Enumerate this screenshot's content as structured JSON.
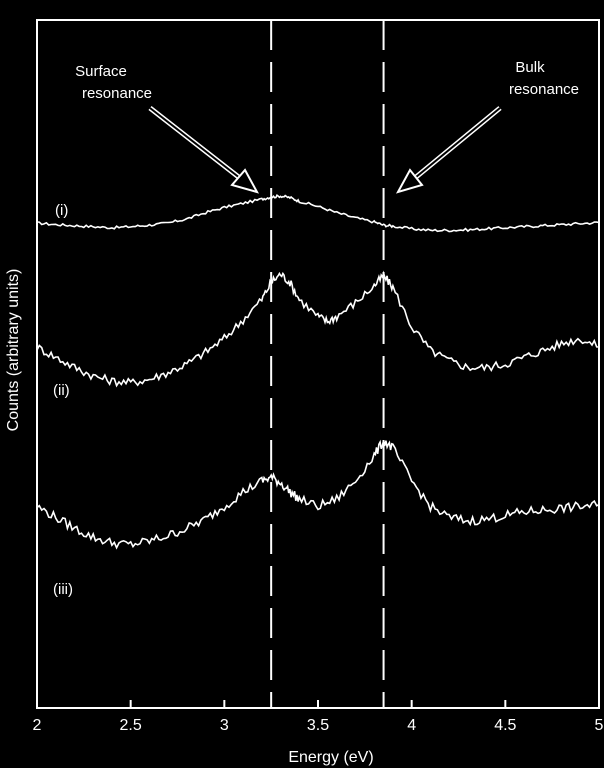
{
  "chart_data": {
    "type": "line",
    "xlabel": "Energy (eV)",
    "ylabel": "Counts (arbitrary units)",
    "xlim": [
      2,
      5
    ],
    "x_ticks": [
      "2",
      "2.5",
      "3",
      "3.5",
      "4",
      "4.5",
      "5"
    ],
    "reference_lines_x": [
      3.25,
      3.85
    ],
    "annotations": [
      {
        "lines": [
          "Surface",
          "resonance"
        ],
        "points_to_x": 3.25
      },
      {
        "lines": [
          "Bulk",
          "resonance"
        ],
        "points_to_x": 3.85
      }
    ],
    "series_labels": [
      "(i)",
      "(ii)",
      "(iii)"
    ],
    "series": [
      {
        "label": "(i)",
        "x": [
          2.0,
          2.1,
          2.2,
          2.3,
          2.4,
          2.5,
          2.6,
          2.7,
          2.8,
          2.9,
          3.0,
          3.1,
          3.2,
          3.25,
          3.3,
          3.35,
          3.4,
          3.5,
          3.6,
          3.7,
          3.8,
          3.85,
          3.9,
          4.0,
          4.1,
          4.2,
          4.3,
          4.4,
          4.5,
          4.6,
          4.7,
          4.8,
          4.9,
          5.0
        ],
        "y": [
          0.48,
          0.45,
          0.43,
          0.41,
          0.39,
          0.41,
          0.44,
          0.48,
          0.56,
          0.68,
          0.78,
          0.86,
          0.94,
          0.98,
          1.0,
          0.97,
          0.9,
          0.8,
          0.68,
          0.58,
          0.5,
          0.44,
          0.42,
          0.37,
          0.34,
          0.34,
          0.35,
          0.37,
          0.39,
          0.41,
          0.43,
          0.45,
          0.47,
          0.49
        ]
      },
      {
        "label": "(ii)",
        "x": [
          2.0,
          2.1,
          2.2,
          2.3,
          2.4,
          2.5,
          2.6,
          2.7,
          2.8,
          2.9,
          3.0,
          3.1,
          3.2,
          3.25,
          3.3,
          3.35,
          3.4,
          3.5,
          3.55,
          3.6,
          3.7,
          3.8,
          3.85,
          3.9,
          4.0,
          4.1,
          4.2,
          4.3,
          4.4,
          4.5,
          4.6,
          4.7,
          4.8,
          4.9,
          5.0
        ],
        "y": [
          0.5,
          0.44,
          0.38,
          0.33,
          0.3,
          0.29,
          0.31,
          0.35,
          0.4,
          0.47,
          0.55,
          0.66,
          0.78,
          0.88,
          0.93,
          0.88,
          0.78,
          0.68,
          0.65,
          0.68,
          0.76,
          0.86,
          0.92,
          0.85,
          0.62,
          0.48,
          0.42,
          0.38,
          0.38,
          0.4,
          0.44,
          0.48,
          0.52,
          0.55,
          0.5
        ]
      },
      {
        "label": "(iii)",
        "x": [
          2.0,
          2.1,
          2.2,
          2.3,
          2.4,
          2.5,
          2.6,
          2.7,
          2.8,
          2.9,
          3.0,
          3.1,
          3.2,
          3.25,
          3.3,
          3.35,
          3.4,
          3.5,
          3.6,
          3.7,
          3.8,
          3.85,
          3.9,
          4.0,
          4.1,
          4.2,
          4.3,
          4.4,
          4.5,
          4.6,
          4.7,
          4.8,
          4.9,
          5.0
        ],
        "y": [
          0.58,
          0.52,
          0.46,
          0.41,
          0.38,
          0.37,
          0.39,
          0.42,
          0.46,
          0.51,
          0.58,
          0.66,
          0.72,
          0.74,
          0.71,
          0.66,
          0.62,
          0.58,
          0.62,
          0.72,
          0.86,
          0.94,
          0.9,
          0.72,
          0.58,
          0.52,
          0.5,
          0.51,
          0.53,
          0.55,
          0.56,
          0.57,
          0.58,
          0.59
        ]
      }
    ]
  }
}
